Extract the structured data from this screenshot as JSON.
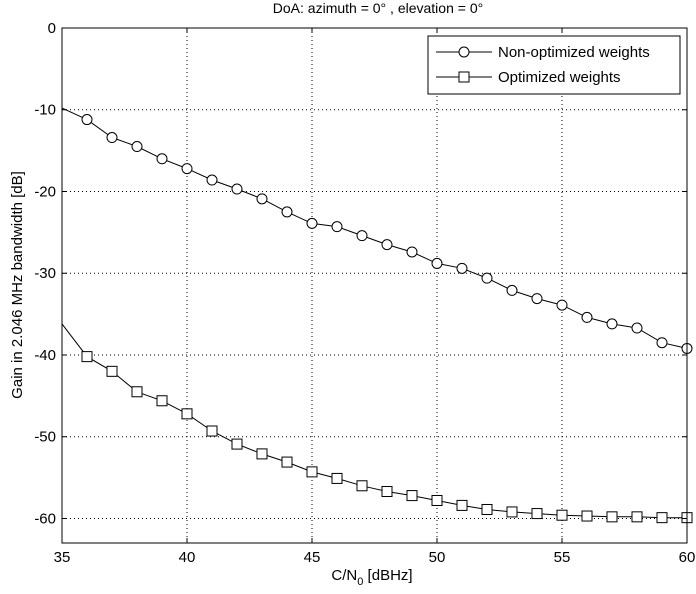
{
  "chart_data": {
    "type": "line",
    "title": "DoA: azimuth = 0° , elevation = 0°",
    "xlabel_main": "C/N",
    "xlabel_sub": "0",
    "xlabel_unit": " [dBHz]",
    "ylabel": "Gain in 2.046 MHz bandwidth [dB]",
    "xlim": [
      35,
      60
    ],
    "ylim": [
      -63,
      0
    ],
    "xticks": [
      35,
      40,
      45,
      50,
      55,
      60
    ],
    "yticks": [
      0,
      -10,
      -20,
      -30,
      -40,
      -50,
      -60
    ],
    "grid": true,
    "legend_position": "top-right",
    "series": [
      {
        "name": "Non-optimized weights",
        "marker": "circle",
        "color": "#000000",
        "x": [
          35,
          36,
          37,
          38,
          39,
          40,
          41,
          42,
          43,
          44,
          45,
          46,
          47,
          48,
          49,
          50,
          51,
          52,
          53,
          54,
          55,
          56,
          57,
          58,
          59,
          60
        ],
        "y": [
          -9.8,
          -11.2,
          -13.4,
          -14.5,
          -16.0,
          -17.2,
          -18.6,
          -19.7,
          -20.9,
          -22.5,
          -23.9,
          -24.3,
          -25.4,
          -26.5,
          -27.4,
          -28.8,
          -29.4,
          -30.6,
          -32.1,
          -33.1,
          -33.9,
          -35.4,
          -36.2,
          -36.7,
          -38.5,
          -39.2
        ],
        "marker_start": 1
      },
      {
        "name": "Optimized weights",
        "marker": "square",
        "color": "#000000",
        "x": [
          35,
          36,
          37,
          38,
          39,
          40,
          41,
          42,
          43,
          44,
          45,
          46,
          47,
          48,
          49,
          50,
          51,
          52,
          53,
          54,
          55,
          56,
          57,
          58,
          59,
          60
        ],
        "y": [
          -36.2,
          -40.2,
          -42.0,
          -44.5,
          -45.6,
          -47.2,
          -49.3,
          -50.9,
          -52.1,
          -53.1,
          -54.3,
          -55.1,
          -56.0,
          -56.7,
          -57.2,
          -57.8,
          -58.4,
          -58.9,
          -59.2,
          -59.4,
          -59.6,
          -59.7,
          -59.8,
          -59.8,
          -59.9,
          -59.9
        ],
        "marker_start": 1
      }
    ]
  }
}
